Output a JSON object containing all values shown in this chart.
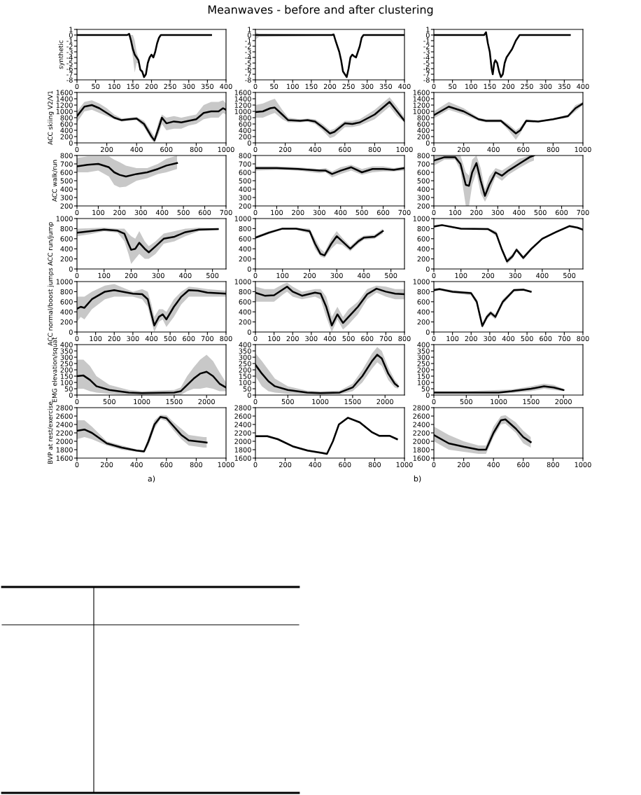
{
  "chart_data": [
    {
      "type": "line",
      "ylabel": "synthetic",
      "xlim": [
        0,
        400
      ],
      "ylim": [
        -8,
        1
      ],
      "xticks": [
        0,
        50,
        100,
        150,
        200,
        250,
        300,
        350,
        400
      ],
      "yticks": [
        -8,
        -7,
        -6,
        -5,
        -4,
        -3,
        -2,
        -1,
        0,
        1
      ],
      "series": [
        {
          "color": "#000000",
          "x": [
            0,
            135,
            140,
            145,
            150,
            155,
            160,
            165,
            170,
            175,
            180,
            185,
            190,
            195,
            200,
            205,
            210,
            215,
            220,
            225,
            360
          ],
          "values": [
            0,
            0,
            0.2,
            -1,
            -2.5,
            -3.5,
            -4,
            -4.5,
            -6.2,
            -6.5,
            -7.5,
            -7,
            -5,
            -4,
            -3.5,
            -4,
            -3,
            -1.5,
            -0.5,
            0,
            0
          ],
          "lower": [
            0,
            0,
            0,
            -2,
            -4,
            -6.7,
            -5,
            -5,
            -6.5,
            -6.8,
            -7.7,
            -7.2,
            -5.2,
            -4.2,
            -3.7,
            -4.2,
            -3.2,
            -1.7,
            -0.7,
            -0.1,
            -0.1
          ],
          "upper": [
            0.1,
            0.1,
            0.4,
            0,
            0,
            -1,
            -3,
            -4,
            -6,
            -6.2,
            -7.3,
            -6.8,
            -4.8,
            -3.8,
            -3.3,
            -3.8,
            -2.8,
            -1.3,
            -0.3,
            0.1,
            0.1
          ]
        }
      ]
    },
    {
      "type": "line",
      "title": "Meanwaves - before and after clustering",
      "xlim": [
        0,
        400
      ],
      "ylim": [
        -8,
        1
      ],
      "xticks": [
        0,
        50,
        100,
        150,
        200,
        250,
        300,
        350,
        400
      ],
      "yticks": [
        -8,
        -7,
        -6,
        -5,
        -4,
        -3,
        -2,
        -1,
        0,
        1
      ],
      "series": [
        {
          "color": "#000000",
          "x": [
            0,
            10,
            205,
            210,
            215,
            220,
            225,
            230,
            235,
            240,
            245,
            250,
            255,
            260,
            265,
            270,
            275,
            280,
            285,
            290,
            400
          ],
          "values": [
            0,
            0,
            0,
            0.1,
            -1,
            -2,
            -3,
            -4.5,
            -6.5,
            -7,
            -7.5,
            -6,
            -4,
            -3.5,
            -3.8,
            -4,
            -3,
            -2,
            -0.5,
            0,
            0
          ],
          "lower": [
            -0.8,
            -0.3,
            -0.1,
            -0.1,
            -1.2,
            -2.2,
            -3.2,
            -4.7,
            -6.7,
            -7.2,
            -7.7,
            -6.2,
            -4.2,
            -3.7,
            -4,
            -4.2,
            -3.2,
            -2.2,
            -0.7,
            -0.1,
            -0.1
          ],
          "upper": [
            0.5,
            0.2,
            0.1,
            0.3,
            -0.8,
            -1.8,
            -2.8,
            -4.3,
            -6.3,
            -6.8,
            -7.3,
            -5.8,
            -3.8,
            -3.3,
            -3.6,
            -3.8,
            -2.8,
            -1.8,
            -0.3,
            0.1,
            0.1
          ]
        }
      ]
    },
    {
      "type": "line",
      "xlim": [
        0,
        400
      ],
      "ylim": [
        -8,
        1
      ],
      "xticks": [
        0,
        50,
        100,
        150,
        200,
        250,
        300,
        350,
        400
      ],
      "yticks": [
        -8,
        -7,
        -6,
        -5,
        -4,
        -3,
        -2,
        -1,
        0,
        1
      ],
      "series": [
        {
          "color": "#000000",
          "x": [
            0,
            135,
            140,
            145,
            150,
            155,
            158,
            162,
            165,
            170,
            175,
            180,
            185,
            190,
            195,
            200,
            210,
            220,
            230,
            365
          ],
          "values": [
            0,
            0,
            0.5,
            -1.5,
            -3,
            -6,
            -7,
            -5,
            -4.5,
            -5,
            -6.5,
            -7.5,
            -7,
            -5,
            -4,
            -3.5,
            -2.5,
            -1,
            0,
            0
          ]
        }
      ]
    },
    {
      "type": "line",
      "ylabel": "ACC skiing V2/V1",
      "xlim": [
        0,
        1000
      ],
      "ylim": [
        0,
        1600
      ],
      "xticks": [
        0,
        200,
        400,
        600,
        800,
        1000
      ],
      "yticks": [
        0,
        200,
        400,
        600,
        800,
        1000,
        1200,
        1400,
        1600
      ],
      "series": [
        {
          "color": "#000000",
          "x": [
            0,
            50,
            100,
            150,
            200,
            250,
            300,
            350,
            400,
            450,
            500,
            520,
            550,
            570,
            600,
            650,
            700,
            750,
            800,
            850,
            900,
            950,
            980,
            1000
          ],
          "values": [
            850,
            1150,
            1200,
            1100,
            950,
            800,
            720,
            750,
            770,
            600,
            200,
            80,
            500,
            800,
            620,
            680,
            650,
            700,
            750,
            950,
            1000,
            1000,
            1100,
            1050
          ],
          "lower": [
            650,
            1000,
            1050,
            950,
            850,
            750,
            680,
            700,
            720,
            500,
            100,
            0,
            300,
            600,
            400,
            450,
            450,
            550,
            600,
            750,
            800,
            800,
            950,
            900
          ],
          "upper": [
            1000,
            1300,
            1350,
            1250,
            1100,
            900,
            780,
            800,
            820,
            700,
            350,
            200,
            700,
            900,
            800,
            850,
            800,
            850,
            900,
            1200,
            1300,
            1300,
            1350,
            1250
          ]
        }
      ]
    },
    {
      "type": "line",
      "xlim": [
        0,
        1000
      ],
      "ylim": [
        0,
        1600
      ],
      "xticks": [
        0,
        200,
        400,
        600,
        800,
        1000
      ],
      "yticks": [
        0,
        200,
        400,
        600,
        800,
        1000,
        1200,
        1400,
        1600
      ],
      "series": [
        {
          "color": "#000000",
          "x": [
            0,
            50,
            100,
            130,
            180,
            220,
            300,
            350,
            400,
            450,
            500,
            530,
            600,
            650,
            700,
            800,
            850,
            900,
            950,
            1000
          ],
          "values": [
            980,
            1000,
            1100,
            1120,
            900,
            720,
            700,
            720,
            680,
            500,
            300,
            350,
            620,
            600,
            650,
            900,
            1100,
            1300,
            1000,
            700
          ],
          "lower": [
            800,
            800,
            900,
            950,
            750,
            650,
            650,
            670,
            600,
            400,
            150,
            200,
            500,
            500,
            550,
            750,
            950,
            1150,
            850,
            650
          ],
          "upper": [
            1200,
            1250,
            1350,
            1400,
            1050,
            800,
            750,
            770,
            750,
            600,
            400,
            450,
            700,
            700,
            750,
            1050,
            1250,
            1450,
            1150,
            800
          ]
        }
      ]
    },
    {
      "type": "line",
      "xlim": [
        0,
        1000
      ],
      "ylim": [
        0,
        1600
      ],
      "xticks": [
        0,
        200,
        400,
        600,
        800,
        1000
      ],
      "yticks": [
        0,
        200,
        400,
        600,
        800,
        1000,
        1200,
        1400,
        1600
      ],
      "series": [
        {
          "color": "#000000",
          "x": [
            0,
            100,
            200,
            300,
            350,
            450,
            500,
            550,
            580,
            620,
            700,
            800,
            900,
            950,
            1000
          ],
          "values": [
            880,
            1150,
            1000,
            750,
            700,
            700,
            500,
            300,
            400,
            700,
            680,
            750,
            850,
            1100,
            1250
          ],
          "lower": [
            780,
            1050,
            900,
            700,
            650,
            650,
            400,
            100,
            300,
            650,
            650,
            720,
            800,
            1000,
            1200
          ],
          "upper": [
            1000,
            1300,
            1100,
            800,
            750,
            750,
            600,
            400,
            500,
            750,
            710,
            780,
            900,
            1200,
            1300
          ]
        }
      ]
    },
    {
      "type": "line",
      "ylabel": "ACC walk/run",
      "xlim": [
        0,
        700
      ],
      "ylim": [
        200,
        800
      ],
      "xticks": [
        0,
        100,
        200,
        300,
        400,
        500,
        600,
        700
      ],
      "yticks": [
        200,
        300,
        400,
        500,
        600,
        700,
        800
      ],
      "series": [
        {
          "color": "#000000",
          "x": [
            0,
            50,
            100,
            150,
            175,
            200,
            230,
            280,
            330,
            380,
            420,
            470
          ],
          "values": [
            670,
            690,
            700,
            660,
            600,
            570,
            550,
            580,
            600,
            640,
            680,
            710
          ],
          "lower": [
            600,
            600,
            620,
            550,
            450,
            420,
            430,
            500,
            530,
            580,
            600,
            640
          ],
          "upper": [
            770,
            790,
            790,
            790,
            750,
            720,
            680,
            650,
            650,
            700,
            760,
            800
          ]
        }
      ]
    },
    {
      "type": "line",
      "xlim": [
        0,
        700
      ],
      "ylim": [
        200,
        800
      ],
      "xticks": [
        0,
        100,
        200,
        300,
        400,
        500,
        600,
        700
      ],
      "yticks": [
        200,
        300,
        400,
        500,
        600,
        700,
        800
      ],
      "series": [
        {
          "color": "#000000",
          "x": [
            0,
            100,
            200,
            300,
            330,
            360,
            400,
            450,
            500,
            550,
            600,
            650,
            700
          ],
          "values": [
            650,
            650,
            640,
            620,
            620,
            580,
            620,
            660,
            600,
            640,
            640,
            630,
            650
          ],
          "lower": [
            620,
            630,
            620,
            590,
            600,
            540,
            580,
            620,
            570,
            600,
            610,
            610,
            620
          ],
          "upper": [
            670,
            670,
            660,
            640,
            650,
            610,
            660,
            690,
            640,
            670,
            670,
            650,
            670
          ]
        }
      ]
    },
    {
      "type": "line",
      "xlim": [
        0,
        700
      ],
      "ylim": [
        200,
        800
      ],
      "xticks": [
        0,
        100,
        200,
        300,
        400,
        500,
        600,
        700
      ],
      "yticks": [
        200,
        300,
        400,
        500,
        600,
        700,
        800
      ],
      "series": [
        {
          "color": "#000000",
          "x": [
            0,
            50,
            100,
            125,
            150,
            165,
            180,
            200,
            220,
            240,
            260,
            290,
            320,
            350,
            400,
            450,
            470
          ],
          "values": [
            740,
            780,
            780,
            700,
            450,
            440,
            600,
            710,
            500,
            320,
            450,
            600,
            560,
            620,
            700,
            780,
            800
          ],
          "lower": [
            680,
            750,
            750,
            620,
            200,
            200,
            450,
            600,
            350,
            250,
            350,
            550,
            500,
            570,
            650,
            720,
            740
          ],
          "upper": [
            790,
            800,
            800,
            800,
            600,
            560,
            750,
            800,
            650,
            400,
            550,
            650,
            620,
            670,
            760,
            800,
            800
          ]
        }
      ]
    },
    {
      "type": "line",
      "ylabel": "ACC run/jump",
      "xlim": [
        0,
        550
      ],
      "ylim": [
        0,
        1000
      ],
      "xticks": [
        0,
        100,
        200,
        300,
        400,
        500
      ],
      "yticks": [
        0,
        200,
        400,
        600,
        800,
        1000
      ],
      "series": [
        {
          "color": "#000000",
          "x": [
            0,
            50,
            100,
            150,
            175,
            190,
            200,
            215,
            230,
            250,
            265,
            290,
            320,
            360,
            400,
            450,
            520
          ],
          "values": [
            720,
            750,
            780,
            760,
            700,
            500,
            380,
            400,
            520,
            400,
            330,
            450,
            600,
            640,
            730,
            780,
            790
          ],
          "lower": [
            650,
            690,
            750,
            720,
            550,
            300,
            100,
            200,
            300,
            200,
            200,
            300,
            500,
            550,
            650,
            750,
            770
          ],
          "upper": [
            800,
            810,
            820,
            800,
            800,
            700,
            650,
            600,
            750,
            550,
            450,
            550,
            700,
            750,
            800,
            820,
            810
          ]
        }
      ]
    },
    {
      "type": "line",
      "xlim": [
        0,
        550
      ],
      "ylim": [
        0,
        1000
      ],
      "xticks": [
        0,
        100,
        200,
        300,
        400,
        500
      ],
      "yticks": [
        0,
        200,
        400,
        600,
        800,
        1000
      ],
      "series": [
        {
          "color": "#000000",
          "x": [
            0,
            50,
            100,
            150,
            200,
            220,
            240,
            255,
            280,
            300,
            320,
            350,
            380,
            400,
            440,
            470
          ],
          "values": [
            620,
            720,
            800,
            800,
            750,
            500,
            300,
            270,
            500,
            650,
            550,
            400,
            550,
            620,
            640,
            750
          ],
          "lower": [
            600,
            690,
            780,
            780,
            700,
            400,
            250,
            220,
            400,
            500,
            480,
            350,
            500,
            580,
            600,
            700
          ],
          "upper": [
            650,
            750,
            820,
            820,
            800,
            600,
            400,
            330,
            600,
            750,
            620,
            450,
            600,
            660,
            680,
            800
          ]
        }
      ]
    },
    {
      "type": "line",
      "xlim": [
        0,
        550
      ],
      "ylim": [
        0,
        1000
      ],
      "xticks": [
        0,
        100,
        200,
        300,
        400,
        500
      ],
      "yticks": [
        0,
        200,
        400,
        600,
        800,
        1000
      ],
      "series": [
        {
          "color": "#000000",
          "x": [
            0,
            30,
            100,
            200,
            230,
            250,
            270,
            290,
            305,
            330,
            360,
            400,
            450,
            500,
            530,
            550
          ],
          "values": [
            840,
            870,
            800,
            790,
            700,
            400,
            150,
            250,
            380,
            220,
            400,
            600,
            730,
            850,
            820,
            780
          ],
          "lower": [
            820,
            850,
            780,
            770,
            650,
            350,
            100,
            200,
            350,
            180,
            370,
            580,
            710,
            830,
            800,
            760
          ],
          "upper": [
            870,
            890,
            820,
            810,
            750,
            450,
            200,
            300,
            420,
            260,
            430,
            620,
            750,
            870,
            840,
            800
          ]
        }
      ]
    },
    {
      "type": "line",
      "ylabel": "ACC normal/boost jumps",
      "xlim": [
        0,
        800
      ],
      "ylim": [
        0,
        1000
      ],
      "xticks": [
        0,
        100,
        200,
        300,
        400,
        500,
        600,
        700,
        800
      ],
      "yticks": [
        0,
        200,
        400,
        600,
        800,
        1000
      ],
      "series": [
        {
          "color": "#000000",
          "x": [
            0,
            20,
            40,
            80,
            150,
            200,
            300,
            350,
            380,
            400,
            415,
            440,
            460,
            480,
            520,
            560,
            600,
            650,
            700,
            800
          ],
          "values": [
            460,
            500,
            480,
            650,
            800,
            830,
            760,
            750,
            650,
            350,
            130,
            300,
            350,
            250,
            500,
            700,
            830,
            820,
            780,
            760
          ],
          "lower": [
            200,
            300,
            250,
            450,
            650,
            700,
            700,
            650,
            500,
            200,
            0,
            200,
            250,
            100,
            300,
            550,
            700,
            700,
            700,
            700
          ],
          "upper": [
            700,
            700,
            700,
            800,
            920,
            950,
            800,
            850,
            800,
            550,
            300,
            450,
            450,
            400,
            650,
            800,
            900,
            880,
            850,
            820
          ]
        }
      ]
    },
    {
      "type": "line",
      "xlim": [
        0,
        800
      ],
      "ylim": [
        0,
        1000
      ],
      "xticks": [
        0,
        100,
        200,
        300,
        400,
        500,
        600,
        700,
        800
      ],
      "yticks": [
        0,
        200,
        400,
        600,
        800,
        1000
      ],
      "series": [
        {
          "color": "#000000",
          "x": [
            0,
            50,
            100,
            150,
            170,
            200,
            250,
            320,
            350,
            380,
            410,
            440,
            470,
            500,
            550,
            600,
            650,
            700,
            750,
            800
          ],
          "values": [
            780,
            720,
            730,
            850,
            900,
            800,
            720,
            780,
            760,
            500,
            130,
            350,
            180,
            300,
            500,
            750,
            860,
            800,
            760,
            750
          ],
          "lower": [
            600,
            600,
            600,
            750,
            800,
            700,
            650,
            700,
            650,
            300,
            0,
            250,
            50,
            150,
            350,
            650,
            780,
            700,
            650,
            650
          ],
          "upper": [
            900,
            850,
            850,
            950,
            980,
            900,
            800,
            850,
            850,
            700,
            300,
            500,
            300,
            450,
            600,
            850,
            920,
            900,
            850,
            850
          ]
        }
      ]
    },
    {
      "type": "line",
      "xlim": [
        0,
        800
      ],
      "ylim": [
        0,
        1000
      ],
      "xticks": [
        0,
        100,
        200,
        300,
        400,
        500,
        600,
        700,
        800
      ],
      "yticks": [
        0,
        200,
        400,
        600,
        800,
        1000
      ],
      "series": [
        {
          "color": "#000000",
          "x": [
            0,
            30,
            100,
            200,
            230,
            260,
            285,
            305,
            330,
            370,
            430,
            480,
            520
          ],
          "values": [
            830,
            850,
            800,
            770,
            600,
            120,
            300,
            380,
            300,
            600,
            830,
            840,
            800
          ],
          "lower": [
            800,
            830,
            770,
            730,
            550,
            80,
            250,
            330,
            250,
            550,
            800,
            820,
            780
          ],
          "upper": [
            870,
            870,
            830,
            800,
            650,
            180,
            350,
            420,
            350,
            650,
            860,
            860,
            820
          ]
        }
      ]
    },
    {
      "type": "line",
      "ylabel": "EMG elevation/squat",
      "xlim": [
        0,
        2300
      ],
      "ylim": [
        0,
        400
      ],
      "xticks": [
        0,
        500,
        1000,
        1500,
        2000
      ],
      "yticks": [
        0,
        50,
        100,
        150,
        200,
        250,
        300,
        350,
        400
      ],
      "series": [
        {
          "color": "#000000",
          "x": [
            0,
            100,
            200,
            300,
            500,
            800,
            1000,
            1500,
            1600,
            1700,
            1800,
            1900,
            2000,
            2100,
            2200,
            2300
          ],
          "values": [
            150,
            155,
            120,
            70,
            40,
            20,
            15,
            20,
            30,
            80,
            130,
            170,
            185,
            150,
            90,
            60
          ],
          "lower": [
            50,
            50,
            30,
            20,
            10,
            0,
            0,
            0,
            0,
            30,
            50,
            50,
            60,
            50,
            30,
            30
          ],
          "upper": [
            280,
            280,
            230,
            150,
            80,
            40,
            30,
            40,
            60,
            150,
            220,
            280,
            320,
            270,
            180,
            100
          ]
        }
      ]
    },
    {
      "type": "line",
      "xlim": [
        0,
        2300
      ],
      "ylim": [
        0,
        400
      ],
      "xticks": [
        0,
        500,
        1000,
        1500,
        2000
      ],
      "yticks": [
        0,
        50,
        100,
        150,
        200,
        250,
        300,
        350,
        400
      ],
      "series": [
        {
          "color": "#000000",
          "x": [
            0,
            100,
            200,
            300,
            500,
            800,
            1000,
            1300,
            1500,
            1650,
            1800,
            1880,
            1950,
            2050,
            2150,
            2200
          ],
          "values": [
            240,
            170,
            110,
            70,
            40,
            20,
            15,
            20,
            60,
            150,
            270,
            320,
            290,
            170,
            90,
            70
          ],
          "lower": [
            150,
            70,
            30,
            20,
            10,
            5,
            5,
            5,
            30,
            100,
            210,
            260,
            230,
            120,
            60,
            50
          ],
          "upper": [
            330,
            270,
            200,
            130,
            70,
            35,
            30,
            35,
            90,
            200,
            330,
            380,
            350,
            220,
            120,
            90
          ]
        }
      ]
    },
    {
      "type": "line",
      "xlim": [
        0,
        2300
      ],
      "ylim": [
        0,
        400
      ],
      "xticks": [
        0,
        500,
        1000,
        1500,
        2000
      ],
      "yticks": [
        0,
        50,
        100,
        150,
        200,
        250,
        300,
        350,
        400
      ],
      "series": [
        {
          "color": "#000000",
          "x": [
            0,
            500,
            1000,
            1200,
            1500,
            1700,
            1850,
            2000
          ],
          "values": [
            20,
            20,
            20,
            30,
            50,
            70,
            60,
            40
          ],
          "lower": [
            10,
            10,
            10,
            15,
            30,
            50,
            40,
            30
          ],
          "upper": [
            30,
            30,
            40,
            45,
            70,
            90,
            80,
            50
          ]
        }
      ]
    },
    {
      "type": "line",
      "ylabel": "BVP at rest/exercise",
      "annotations": [
        "a)"
      ],
      "xlim": [
        0,
        1000
      ],
      "ylim": [
        1600,
        2800
      ],
      "xticks": [
        0,
        200,
        400,
        600,
        800,
        1000
      ],
      "yticks": [
        1600,
        1800,
        2000,
        2200,
        2400,
        2600,
        2800
      ],
      "series": [
        {
          "color": "#000000",
          "x": [
            0,
            50,
            100,
            200,
            300,
            400,
            450,
            480,
            520,
            560,
            600,
            650,
            700,
            750,
            850,
            870
          ],
          "values": [
            2250,
            2280,
            2200,
            1950,
            1850,
            1780,
            1760,
            2000,
            2400,
            2580,
            2550,
            2350,
            2150,
            2020,
            1980,
            1970
          ],
          "lower": [
            2050,
            2100,
            2050,
            1900,
            1800,
            1750,
            1730,
            1900,
            2300,
            2530,
            2480,
            2250,
            2050,
            1900,
            1850,
            1850
          ],
          "upper": [
            2500,
            2500,
            2350,
            2000,
            1900,
            1810,
            1790,
            2100,
            2500,
            2630,
            2620,
            2450,
            2300,
            2150,
            2100,
            2100
          ]
        }
      ]
    },
    {
      "type": "line",
      "xlim": [
        0,
        1000
      ],
      "ylim": [
        1600,
        2800
      ],
      "xticks": [
        0,
        200,
        400,
        600,
        800,
        1000
      ],
      "yticks": [
        1600,
        1800,
        2000,
        2200,
        2400,
        2600,
        2800
      ],
      "series": [
        {
          "color": "#000000",
          "x": [
            0,
            80,
            150,
            250,
            350,
            450,
            480,
            520,
            560,
            620,
            700,
            780,
            830,
            900,
            950
          ],
          "values": [
            2120,
            2120,
            2050,
            1880,
            1780,
            1720,
            1700,
            2000,
            2400,
            2560,
            2450,
            2220,
            2130,
            2130,
            2050
          ],
          "lower": [
            2095,
            2095,
            2025,
            1855,
            1755,
            1695,
            1675,
            1975,
            2375,
            2535,
            2425,
            2195,
            2105,
            2105,
            2025
          ],
          "upper": [
            2145,
            2145,
            2075,
            1905,
            1805,
            1745,
            1725,
            2025,
            2425,
            2585,
            2475,
            2245,
            2155,
            2155,
            2075
          ]
        }
      ]
    },
    {
      "type": "line",
      "annotations": [
        "b)"
      ],
      "xlim": [
        0,
        1000
      ],
      "ylim": [
        1600,
        2800
      ],
      "xticks": [
        0,
        200,
        400,
        600,
        800,
        1000
      ],
      "yticks": [
        1600,
        1800,
        2000,
        2200,
        2400,
        2600,
        2800
      ],
      "series": [
        {
          "color": "#000000",
          "x": [
            0,
            100,
            200,
            300,
            350,
            400,
            450,
            480,
            550,
            600,
            650
          ],
          "values": [
            2150,
            1950,
            1870,
            1800,
            1800,
            2200,
            2500,
            2520,
            2300,
            2100,
            1980
          ],
          "lower": [
            2000,
            1800,
            1750,
            1700,
            1700,
            2100,
            2400,
            2420,
            2200,
            1950,
            1850
          ],
          "upper": [
            2350,
            2150,
            2000,
            1900,
            1900,
            2350,
            2600,
            2620,
            2450,
            2250,
            2100
          ]
        }
      ]
    }
  ]
}
